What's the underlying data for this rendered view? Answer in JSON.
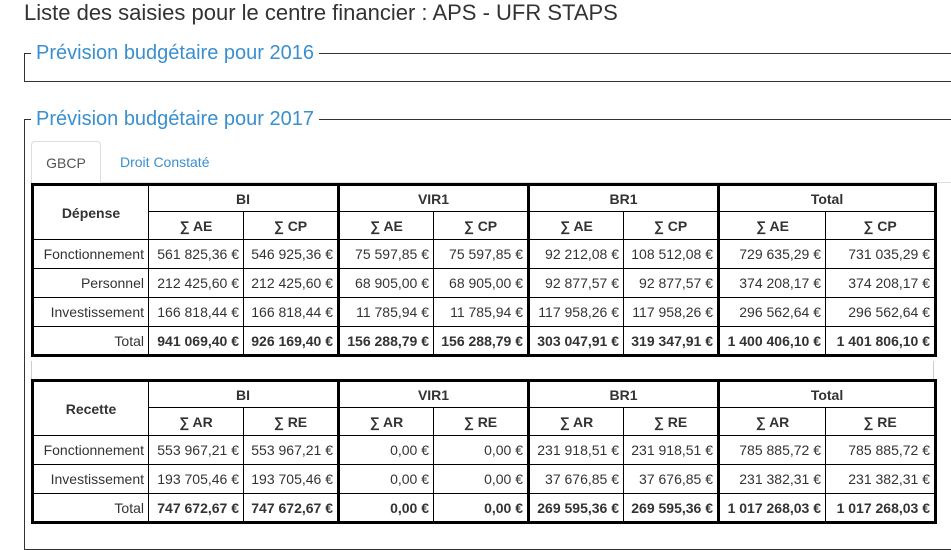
{
  "page_title": "Liste des saisies pour le centre financier : APS - UFR STAPS",
  "fieldsets": [
    {
      "legend": "Prévision budgétaire pour 2016"
    },
    {
      "legend": "Prévision budgétaire pour 2017"
    }
  ],
  "tabs": [
    {
      "label": "GBCP",
      "active": true
    },
    {
      "label": "Droit Constaté",
      "active": false
    }
  ],
  "depense": {
    "row_header": "Dépense",
    "groups": [
      "BI",
      "VIR1",
      "BR1",
      "Total"
    ],
    "subheaders": [
      "∑ AE",
      "∑ CP"
    ],
    "rows": [
      {
        "label": "Fonctionnement",
        "values": [
          "561 825,36 €",
          "546 925,36 €",
          "75 597,85 €",
          "75 597,85 €",
          "92 212,08 €",
          "108 512,08 €",
          "729 635,29 €",
          "731 035,29 €"
        ]
      },
      {
        "label": "Personnel",
        "values": [
          "212 425,60 €",
          "212 425,60 €",
          "68 905,00 €",
          "68 905,00 €",
          "92 877,57 €",
          "92 877,57 €",
          "374 208,17 €",
          "374 208,17 €"
        ]
      },
      {
        "label": "Investissement",
        "values": [
          "166 818,44 €",
          "166 818,44 €",
          "11 785,94 €",
          "11 785,94 €",
          "117 958,26 €",
          "117 958,26 €",
          "296 562,64 €",
          "296 562,64 €"
        ]
      },
      {
        "label": "Total",
        "values": [
          "941 069,40 €",
          "926 169,40 €",
          "156 288,79 €",
          "156 288,79 €",
          "303 047,91 €",
          "319 347,91 €",
          "1 400 406,10 €",
          "1 401 806,10 €"
        ]
      }
    ]
  },
  "recette": {
    "row_header": "Recette",
    "groups": [
      "BI",
      "VIR1",
      "BR1",
      "Total"
    ],
    "subheaders": [
      "∑ AR",
      "∑ RE"
    ],
    "rows": [
      {
        "label": "Fonctionnement",
        "values": [
          "553 967,21 €",
          "553 967,21 €",
          "0,00 €",
          "0,00 €",
          "231 918,51 €",
          "231 918,51 €",
          "785 885,72 €",
          "785 885,72 €"
        ]
      },
      {
        "label": "Investissement",
        "values": [
          "193 705,46 €",
          "193 705,46 €",
          "0,00 €",
          "0,00 €",
          "37 676,85 €",
          "37 676,85 €",
          "231 382,31 €",
          "231 382,31 €"
        ]
      },
      {
        "label": "Total",
        "values": [
          "747 672,67 €",
          "747 672,67 €",
          "0,00 €",
          "0,00 €",
          "269 595,36 €",
          "269 595,36 €",
          "1 017 268,03 €",
          "1 017 268,03 €"
        ]
      }
    ]
  }
}
